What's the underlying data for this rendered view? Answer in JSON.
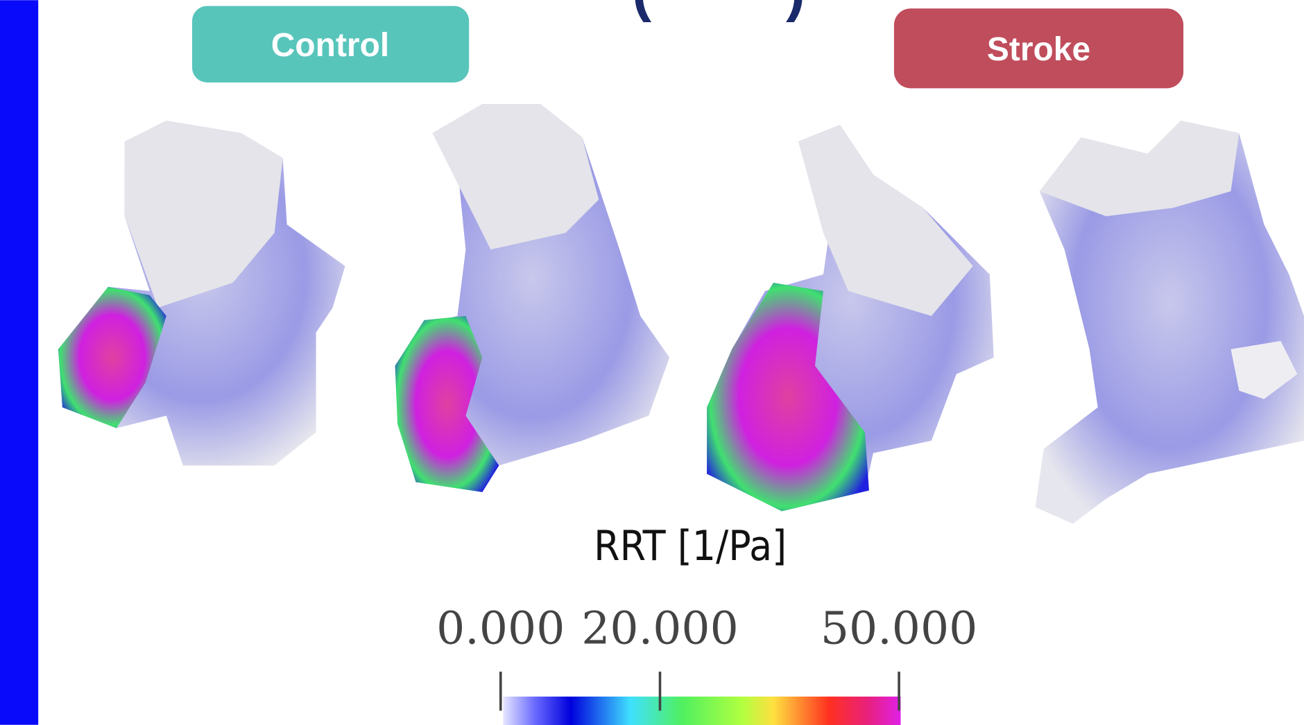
{
  "labels": {
    "control": "Control",
    "stroke": "Stroke"
  },
  "colorbar": {
    "title": "RRT [1/Pa]",
    "ticks": [
      {
        "value": 0,
        "label": "0.000"
      },
      {
        "value": 20,
        "label": "20.000"
      },
      {
        "value": 50,
        "label": "50.000"
      }
    ]
  }
}
